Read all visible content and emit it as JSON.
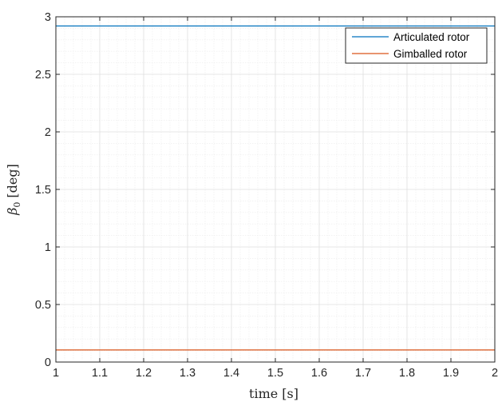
{
  "chart_data": {
    "type": "line",
    "title": "",
    "xlabel": "time [s]",
    "ylabel": "β0 [deg]",
    "ylabel_symbol": "β",
    "ylabel_subscript": "0",
    "ylabel_unit": "[deg]",
    "xlim": [
      1,
      2
    ],
    "ylim": [
      0,
      3
    ],
    "x_ticks": [
      1,
      1.1,
      1.2,
      1.3,
      1.4,
      1.5,
      1.6,
      1.7,
      1.8,
      1.9,
      2
    ],
    "x_tick_labels": [
      "1",
      "1.1",
      "1.2",
      "1.3",
      "1.4",
      "1.5",
      "1.6",
      "1.7",
      "1.8",
      "1.9",
      "2"
    ],
    "y_ticks": [
      0,
      0.5,
      1,
      1.5,
      2,
      2.5,
      3
    ],
    "y_tick_labels": [
      "0",
      "0.5",
      "1",
      "1.5",
      "2",
      "2.5",
      "3"
    ],
    "grid": true,
    "minor_grid": true,
    "legend_position": "top-right",
    "x": [
      1,
      2
    ],
    "series": [
      {
        "name": "Articulated rotor",
        "color": "#0072bd",
        "values": [
          2.92,
          2.92
        ]
      },
      {
        "name": "Gimballed rotor",
        "color": "#d95319",
        "values": [
          0.105,
          0.105
        ]
      }
    ]
  }
}
